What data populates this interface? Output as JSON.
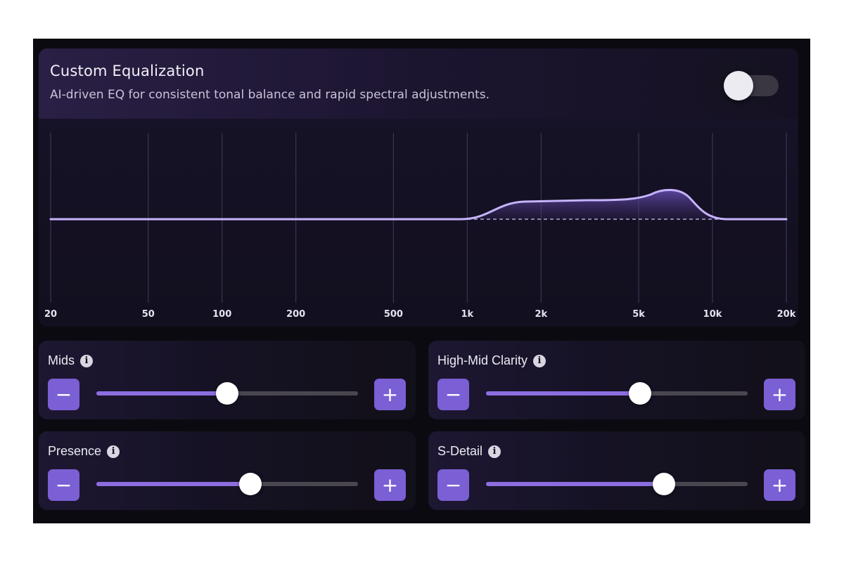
{
  "eq": {
    "title": "Custom Equalization",
    "description": "AI-driven EQ for consistent tonal balance and rapid spectral adjustments.",
    "toggle_enabled": false,
    "frequencies": [
      "20",
      "50",
      "100",
      "200",
      "500",
      "1k",
      "2k",
      "5k",
      "10k",
      "20k"
    ],
    "accent_color": "#b9a3f5"
  },
  "controls": [
    {
      "label": "Mids",
      "value_fraction": 0.5,
      "minus_label": "−",
      "plus_label": "+"
    },
    {
      "label": "High-Mid Clarity",
      "value_fraction": 0.59,
      "minus_label": "−",
      "plus_label": "+"
    },
    {
      "label": "Presence",
      "value_fraction": 0.59,
      "minus_label": "−",
      "plus_label": "+"
    },
    {
      "label": "S-Detail",
      "value_fraction": 0.68,
      "minus_label": "−",
      "plus_label": "+"
    }
  ],
  "info_icon_glyph": "i",
  "colors": {
    "button": "#7b5fd4",
    "slider_fill": "#8c6ee0",
    "slider_track": "#4a4650",
    "curve": "#c6b3fb"
  }
}
